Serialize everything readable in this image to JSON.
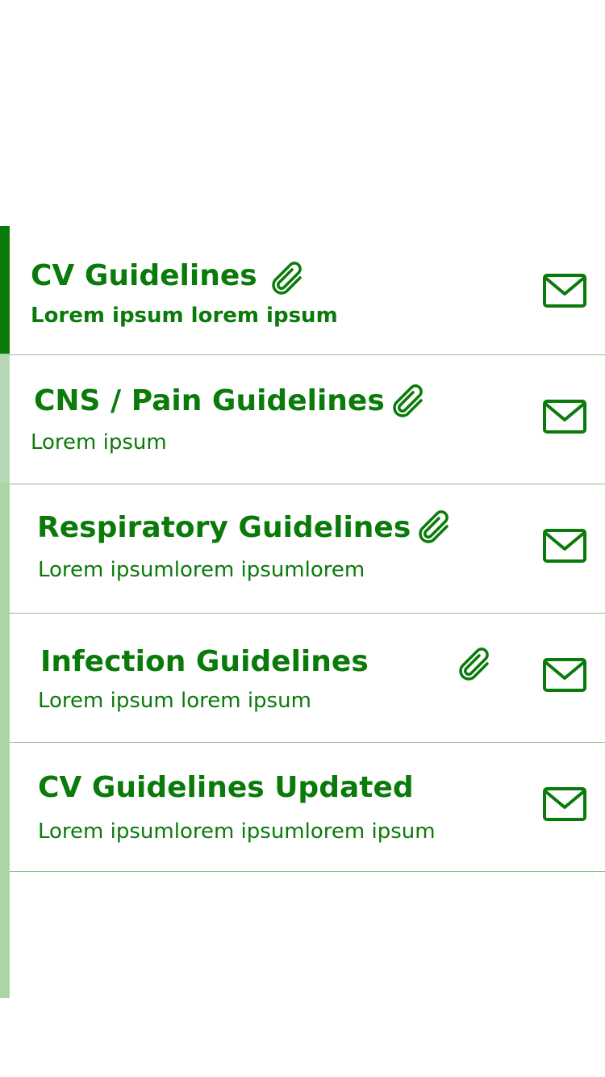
{
  "colors": {
    "accent": "#0a7a0a",
    "rail": "#a9d5a7",
    "divider": "#8fbf8c"
  },
  "items": [
    {
      "title": "CV Guidelines",
      "subtitle": "Lorem ipsum lorem ipsum",
      "has_attachment": true,
      "icons": [
        "paperclip-icon",
        "mail-icon"
      ]
    },
    {
      "title": "CNS / Pain Guidelines",
      "subtitle": "Lorem ipsum",
      "has_attachment": true,
      "icons": [
        "paperclip-icon",
        "mail-icon"
      ]
    },
    {
      "title": "Respiratory Guidelines",
      "subtitle": "Lorem ipsumlorem ipsumlorem",
      "has_attachment": true,
      "icons": [
        "paperclip-icon",
        "mail-icon"
      ]
    },
    {
      "title": "Infection Guidelines",
      "subtitle": "Lorem ipsum lorem ipsum",
      "has_attachment": true,
      "icons": [
        "paperclip-icon",
        "mail-icon"
      ]
    },
    {
      "title": "CV Guidelines Updated",
      "subtitle": "Lorem ipsumlorem ipsumlorem ipsum",
      "has_attachment": false,
      "icons": [
        "mail-icon"
      ]
    }
  ]
}
